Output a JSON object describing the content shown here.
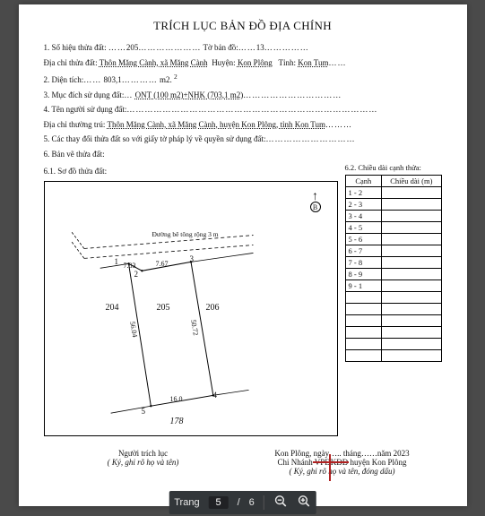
{
  "title": "TRÍCH LỤC BẢN ĐỒ ĐỊA CHÍNH",
  "fields": {
    "line1_label": "1. Số hiệu thửa đất:",
    "so_hieu": "205",
    "to_ban_do_label": "Tờ bản đồ:",
    "to_ban_do": "13",
    "line_dia_chi_label": "Địa chỉ thửa đất:",
    "dia_chi": "Thôn Măng Cành, xã Măng Cành",
    "huyen_label": "Huyện:",
    "huyen": "Kon Plông",
    "tinh_label": "Tỉnh:",
    "tinh": "Kon Tum",
    "line2_label": "2. Diện tích:",
    "dien_tich": "803,1",
    "dien_tich_unit": "m2.",
    "dien_tich_sup": "2",
    "line3_label": "3. Mục đích sử dụng đất:",
    "muc_dich": "ONT (100 m2)+NHK (703,1 m2)",
    "line4_label": "4. Tên người sử dụng đất:",
    "line_thtru_label": "Địa chỉ thường trú:",
    "thuong_tru": "Thôn Măng Cành, xã Măng Cành, huyện Kon Plông, tỉnh Kon Tum",
    "line5_label": "5. Các thay đổi thửa đất so với giấy tờ pháp lý về quyền sử dụng đất:",
    "line6_label": "6. Bản vẽ thửa đất:",
    "line61_label": "6.1. Sơ đồ thửa đất:",
    "line62_label": "6.2. Chiều dài cạnh thửa:"
  },
  "edges_header": {
    "col1": "Cạnh",
    "col2": "Chiều dài (m)"
  },
  "edges": [
    {
      "c": "1 - 2",
      "l": ""
    },
    {
      "c": "2 - 3",
      "l": ""
    },
    {
      "c": "3 - 4",
      "l": ""
    },
    {
      "c": "4 - 5",
      "l": ""
    },
    {
      "c": "5 - 6",
      "l": ""
    },
    {
      "c": "6 - 7",
      "l": ""
    },
    {
      "c": "7 - 8",
      "l": ""
    },
    {
      "c": "8 - 9",
      "l": ""
    },
    {
      "c": "9 - 1",
      "l": ""
    },
    {
      "c": "",
      "l": ""
    },
    {
      "c": "",
      "l": ""
    },
    {
      "c": "",
      "l": ""
    },
    {
      "c": "",
      "l": ""
    },
    {
      "c": "",
      "l": ""
    },
    {
      "c": "",
      "l": ""
    }
  ],
  "map": {
    "road_label": "Đường bê tông rộng 3 m",
    "dims": {
      "d1": "7.83",
      "d2": "7.67",
      "d3": "56.04",
      "d4": "50.72",
      "d5": "16.0"
    },
    "nodes": {
      "n1": "1",
      "n2": "2",
      "n3": "3",
      "n4": "4",
      "n5": "5"
    },
    "parcels": {
      "p204": "204",
      "p205": "205",
      "p206": "206",
      "p178": "178"
    },
    "north": "B"
  },
  "sig": {
    "left_title": "Người trích lục",
    "left_note": "( Ký, ghi rõ họ và tên)",
    "right_date": "Kon Plông, ngày….. tháng……năm 2023",
    "right_title": "Chi Nhánh VPĐKĐĐ huyện Kon Plông",
    "right_note": "( Ký, ghi rõ họ và tên, đóng dấu)"
  },
  "toolbar": {
    "page_label": "Trang",
    "current": "5",
    "sep": "/",
    "total": "6"
  },
  "colors": {
    "stamp_red": "#b02020",
    "toolbar_bg": "#323639",
    "page_bg": "#ffffff",
    "viewer_bg": "#4a4a4a"
  }
}
